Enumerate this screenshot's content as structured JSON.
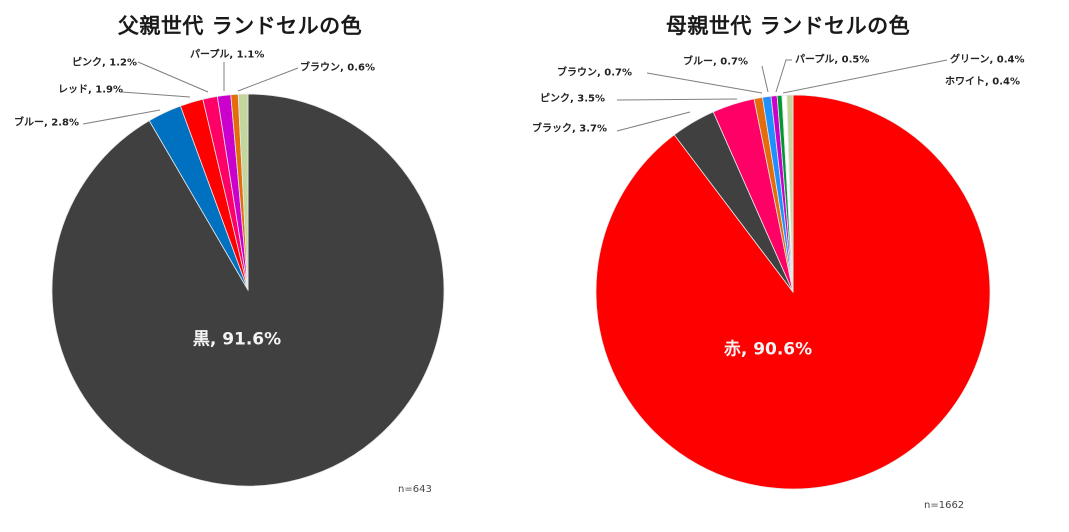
{
  "chart_data": [
    {
      "type": "pie",
      "title": "父親世代 ランドセルの色",
      "note": "n=643",
      "center_label": "黒, 91.6%",
      "slices": [
        {
          "label": "黒",
          "value": 91.6,
          "color": "#404040",
          "display": "黒, 91.6%"
        },
        {
          "label": "ブルー",
          "value": 2.8,
          "color": "#0070C0",
          "display": "ブルー, 2.8%"
        },
        {
          "label": "レッド",
          "value": 1.9,
          "color": "#FF0000",
          "display": "レッド, 1.9%"
        },
        {
          "label": "ピンク",
          "value": 1.2,
          "color": "#FF0066",
          "display": "ピンク, 1.2%"
        },
        {
          "label": "パープル",
          "value": 1.1,
          "color": "#CC00CC",
          "display": "パープル, 1.1%"
        },
        {
          "label": "ブラウン",
          "value": 0.6,
          "color": "#E46C0A",
          "display": "ブラウン, 0.6%"
        },
        {
          "label": "",
          "value": 0.8,
          "color": "#C3D69B",
          "display": ""
        }
      ]
    },
    {
      "type": "pie",
      "title": "母親世代 ランドセルの色",
      "note": "n=1662",
      "center_label": "赤, 90.6%",
      "slices": [
        {
          "label": "赤",
          "value": 90.6,
          "color": "#FF0000",
          "display": "赤, 90.6%"
        },
        {
          "label": "ブラック",
          "value": 3.7,
          "color": "#404040",
          "display": "ブラック, 3.7%"
        },
        {
          "label": "ピンク",
          "value": 3.5,
          "color": "#FF0066",
          "display": "ピンク, 3.5%"
        },
        {
          "label": "ブラウン",
          "value": 0.7,
          "color": "#E46C0A",
          "display": "ブラウン, 0.7%"
        },
        {
          "label": "ブルー",
          "value": 0.7,
          "color": "#1E90FF",
          "display": "ブルー, 0.7%"
        },
        {
          "label": "パープル",
          "value": 0.5,
          "color": "#CC00CC",
          "display": "パープル, 0.5%"
        },
        {
          "label": "グリーン",
          "value": 0.4,
          "color": "#009933",
          "display": "グリーン, 0.4%"
        },
        {
          "label": "ホワイト",
          "value": 0.4,
          "color": "#FFFFFF",
          "display": "ホワイト, 0.4%"
        },
        {
          "label": "",
          "value": 0.5,
          "color": "#C3D69B",
          "display": ""
        }
      ]
    }
  ],
  "left": {
    "title": "父親世代 ランドセルの色",
    "center_label": "黒, 91.6%",
    "note": "n=643",
    "labels": {
      "blue": "ブルー, 2.8%",
      "red": "レッド, 1.9%",
      "pink": "ピンク, 1.2%",
      "purple": "パープル, 1.1%",
      "brown": "ブラウン, 0.6%"
    }
  },
  "right": {
    "title": "母親世代 ランドセルの色",
    "center_label": "赤, 90.6%",
    "note": "n=1662",
    "labels": {
      "black": "ブラック, 3.7%",
      "pink": "ピンク, 3.5%",
      "brown": "ブラウン, 0.7%",
      "blue": "ブルー, 0.7%",
      "purple": "パープル, 0.5%",
      "green": "グリーン, 0.4%",
      "white": "ホワイト, 0.4%"
    }
  }
}
